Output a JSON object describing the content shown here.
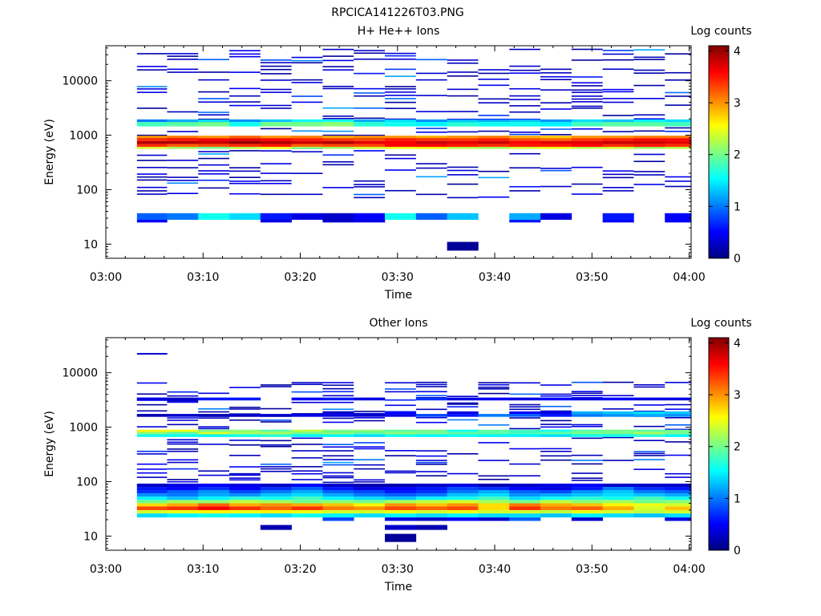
{
  "page": {
    "title": "RPCICA141226T03.PNG"
  },
  "colors": {
    "colormap": [
      "#00007f",
      "#0000ff",
      "#007fff",
      "#00ffff",
      "#7fff7f",
      "#ffff00",
      "#ff7f00",
      "#ff0000",
      "#7f0000"
    ],
    "axis": "#000000",
    "background": "#ffffff"
  },
  "chart_data": [
    {
      "type": "heatmap",
      "title": "H+ He++ Ions",
      "xlabel": "Time",
      "ylabel": "Energy (eV)",
      "xtick_labels": [
        "03:00",
        "03:10",
        "03:20",
        "03:30",
        "03:40",
        "03:50",
        "04:00"
      ],
      "xlim_minutes": [
        0,
        60.2
      ],
      "ytick_labels": [
        "10",
        "100",
        "1000",
        "10000"
      ],
      "ytick_values": [
        10,
        100,
        1000,
        10000
      ],
      "ylim": [
        5.5,
        44000
      ],
      "yscale": "log",
      "colorbar": {
        "label": "Log counts",
        "range": [
          0,
          4.1
        ],
        "tick_labels": [
          "0",
          "1",
          "2",
          "3",
          "4"
        ],
        "tick_values": [
          0,
          1,
          2,
          3,
          4
        ]
      },
      "time_bins_minutes": [
        [
          3.2,
          6.3
        ],
        [
          6.3,
          9.5
        ],
        [
          9.5,
          12.7
        ],
        [
          12.7,
          15.9
        ],
        [
          15.9,
          19.1
        ],
        [
          19.1,
          22.3
        ],
        [
          22.3,
          25.5
        ],
        [
          25.5,
          28.7
        ],
        [
          28.7,
          31.9
        ],
        [
          31.9,
          35.1
        ],
        [
          35.1,
          38.3
        ],
        [
          38.3,
          41.5
        ],
        [
          41.5,
          44.7
        ],
        [
          44.7,
          47.9
        ],
        [
          47.9,
          51.1
        ],
        [
          51.1,
          54.3
        ],
        [
          54.3,
          57.5
        ],
        [
          57.5,
          60.2
        ]
      ],
      "bands": [
        {
          "e": [
            1450,
            1750
          ],
          "v": [
            1.8,
            1.9,
            2.0,
            1.6,
            2.0,
            2.0,
            2.1,
            1.7,
            1.6,
            1.5,
            1.7,
            1.6,
            1.6,
            1.5,
            1.8,
            1.9,
            1.9,
            1.8
          ]
        },
        {
          "e": [
            1750,
            1950
          ],
          "v": [
            1.0,
            1.2,
            1.4,
            1.1,
            1.3,
            1.5,
            1.6,
            1.2,
            1.4,
            1.1,
            1.3,
            1.2,
            1.3,
            1.1,
            1.4,
            1.3,
            1.5,
            1.4
          ]
        },
        {
          "e": [
            880,
            980
          ],
          "v": [
            3.0,
            3.1,
            3.0,
            3.2,
            3.0,
            3.1,
            2.9,
            3.0,
            3.0,
            2.9,
            3.0,
            3.1,
            2.9,
            2.8,
            3.0,
            3.0,
            3.1,
            3.1
          ]
        },
        {
          "e": [
            780,
            880
          ],
          "v": [
            3.4,
            3.5,
            3.6,
            3.7,
            3.6,
            3.5,
            3.4,
            3.3,
            3.5,
            3.4,
            3.4,
            3.5,
            3.3,
            3.2,
            3.4,
            3.5,
            3.6,
            3.6
          ]
        },
        {
          "e": [
            690,
            780
          ],
          "v": [
            3.9,
            3.9,
            3.8,
            4.0,
            3.9,
            3.8,
            3.9,
            3.7,
            3.6,
            3.8,
            3.7,
            3.8,
            3.6,
            3.7,
            3.7,
            3.8,
            3.8,
            3.7
          ]
        },
        {
          "e": [
            610,
            690
          ],
          "v": [
            3.4,
            3.2,
            3.3,
            3.4,
            3.5,
            3.2,
            3.3,
            3.3,
            3.6,
            3.6,
            3.5,
            3.4,
            3.5,
            3.5,
            3.6,
            3.4,
            3.5,
            3.4
          ]
        },
        {
          "e": [
            560,
            610
          ],
          "v": [
            2.4,
            2.2,
            2.0,
            2.3,
            2.5,
            2.1,
            2.2,
            2.4,
            2.5,
            2.6,
            2.3,
            2.2,
            2.4,
            2.5,
            2.3,
            2.4,
            2.2,
            2.3
          ]
        },
        {
          "e": [
            28,
            37
          ],
          "v": [
            0.9,
            1.0,
            1.6,
            1.4,
            0.6,
            0.4,
            0.3,
            0.5,
            1.6,
            0.9,
            1.3,
            0,
            1.2,
            0.4,
            0,
            0.6,
            0,
            0.5
          ]
        },
        {
          "e": [
            25,
            28
          ],
          "v": [
            0.5,
            0,
            0,
            0,
            0.4,
            0,
            0.3,
            0.4,
            0,
            0,
            0,
            0,
            0.6,
            0,
            0,
            0.5,
            0,
            0.5
          ]
        },
        {
          "e": [
            9.0,
            11.0
          ],
          "v": [
            0,
            0,
            0,
            0,
            0,
            0,
            0,
            0,
            0,
            0,
            0.1,
            0,
            0,
            0,
            0,
            0,
            0,
            0
          ]
        },
        {
          "e": [
            7.6,
            9.0
          ],
          "v": [
            0,
            0,
            0,
            0,
            0,
            0,
            0,
            0,
            0,
            0,
            0.1,
            0,
            0,
            0,
            0,
            0,
            0,
            0
          ]
        }
      ],
      "scatter_energy_range": [
        70,
        40000
      ],
      "scatter_density": 0.35
    },
    {
      "type": "heatmap",
      "title": "Other Ions",
      "xlabel": "Time",
      "ylabel": "Energy (eV)",
      "xtick_labels": [
        "03:00",
        "03:10",
        "03:20",
        "03:30",
        "03:40",
        "03:50",
        "04:00"
      ],
      "xlim_minutes": [
        0,
        60.2
      ],
      "ytick_labels": [
        "10",
        "100",
        "1000",
        "10000"
      ],
      "ytick_values": [
        10,
        100,
        1000,
        10000
      ],
      "ylim": [
        5.5,
        44000
      ],
      "yscale": "log",
      "colorbar": {
        "label": "Log counts",
        "range": [
          0,
          4.1
        ],
        "tick_labels": [
          "0",
          "1",
          "2",
          "3",
          "4"
        ],
        "tick_values": [
          0,
          1,
          2,
          3,
          4
        ]
      },
      "time_bins_minutes": [
        [
          3.2,
          6.3
        ],
        [
          6.3,
          9.5
        ],
        [
          9.5,
          12.7
        ],
        [
          12.7,
          15.9
        ],
        [
          15.9,
          19.1
        ],
        [
          19.1,
          22.3
        ],
        [
          22.3,
          25.5
        ],
        [
          25.5,
          28.7
        ],
        [
          28.7,
          31.9
        ],
        [
          31.9,
          35.1
        ],
        [
          35.1,
          38.3
        ],
        [
          38.3,
          41.5
        ],
        [
          41.5,
          44.7
        ],
        [
          44.7,
          47.9
        ],
        [
          47.9,
          51.1
        ],
        [
          51.1,
          54.3
        ],
        [
          54.3,
          57.5
        ],
        [
          57.5,
          60.2
        ]
      ],
      "bands": [
        {
          "e": [
            3100,
            3500
          ],
          "v": [
            0.4,
            0.3,
            0.6,
            0.6,
            0,
            0.5,
            0.6,
            0.4,
            0,
            0.7,
            0.4,
            0.5,
            0.4,
            0.5,
            0.4,
            0.5,
            0.4,
            0.4
          ]
        },
        {
          "e": [
            1550,
            1750
          ],
          "v": [
            0.2,
            0.3,
            0.2,
            0.3,
            0.3,
            0.4,
            0.4,
            0.3,
            0.4,
            0.8,
            0.6,
            1.0,
            0.9,
            0.6,
            1.0,
            1.1,
            1.2,
            1.1
          ]
        },
        {
          "e": [
            1750,
            1950
          ],
          "v": [
            0,
            0,
            0,
            0,
            0,
            0,
            0.3,
            0,
            0.5,
            0,
            0.4,
            0,
            0.5,
            0.4,
            1.2,
            1.3,
            1.4,
            1.3
          ]
        },
        {
          "e": [
            820,
            900
          ],
          "v": [
            2.6,
            2.5,
            2.0,
            2.1,
            1.9,
            2.3,
            2.0,
            2.1,
            1.9,
            2.0,
            1.6,
            1.9,
            1.8,
            1.6,
            1.9,
            2.0,
            1.9,
            2.0
          ]
        },
        {
          "e": [
            740,
            820
          ],
          "v": [
            2.1,
            1.9,
            2.4,
            2.2,
            2.2,
            2.0,
            2.1,
            1.9,
            2.1,
            2.0,
            1.9,
            1.9,
            1.8,
            1.9,
            2.0,
            2.0,
            2.2,
            2.0
          ]
        },
        {
          "e": [
            660,
            740
          ],
          "v": [
            1.6,
            1.6,
            1.5,
            1.6,
            1.7,
            1.5,
            1.5,
            1.4,
            1.6,
            1.5,
            1.6,
            1.5,
            1.5,
            1.4,
            1.6,
            1.6,
            1.7,
            1.5
          ]
        },
        {
          "e": [
            80,
            92
          ],
          "v": [
            0.3,
            0.4,
            0.5,
            0.4,
            0.3,
            0.5,
            0.3,
            0.2,
            0.2,
            0.3,
            0.4,
            0.2,
            0.3,
            0.4,
            0.5,
            0.3,
            0.3,
            0.3
          ]
        },
        {
          "e": [
            70,
            80
          ],
          "v": [
            0.6,
            0.5,
            0.7,
            0.5,
            0.7,
            0.9,
            0.6,
            0.4,
            0.5,
            0.6,
            0.8,
            0.7,
            0.5,
            0.4,
            0.6,
            1.0,
            0.7,
            0.6
          ]
        },
        {
          "e": [
            61,
            70
          ],
          "v": [
            0.7,
            0.9,
            1.1,
            0.8,
            1.0,
            1.2,
            0.9,
            0.8,
            0.6,
            0.7,
            1.0,
            1.2,
            0.9,
            0.8,
            1.1,
            1.3,
            1.0,
            0.9
          ]
        },
        {
          "e": [
            53,
            61
          ],
          "v": [
            1.1,
            1.0,
            1.2,
            1.1,
            1.3,
            1.4,
            1.2,
            1.0,
            0.9,
            1.0,
            1.3,
            1.4,
            1.1,
            1.2,
            1.3,
            1.4,
            1.3,
            1.2
          ]
        },
        {
          "e": [
            46,
            53
          ],
          "v": [
            1.5,
            1.3,
            1.5,
            1.7,
            1.6,
            1.8,
            1.5,
            1.4,
            1.3,
            1.5,
            1.6,
            1.8,
            1.4,
            1.6,
            1.7,
            1.6,
            1.8,
            1.6
          ]
        },
        {
          "e": [
            40,
            46
          ],
          "v": [
            2.0,
            2.2,
            2.1,
            2.3,
            2.2,
            2.0,
            2.1,
            2.0,
            2.2,
            2.3,
            2.4,
            2.2,
            2.0,
            2.3,
            2.1,
            2.2,
            2.0,
            2.1
          ]
        },
        {
          "e": [
            35,
            40
          ],
          "v": [
            2.7,
            2.9,
            3.2,
            2.9,
            3.0,
            2.9,
            2.8,
            2.6,
            3.0,
            2.8,
            3.0,
            2.7,
            3.1,
            2.9,
            2.8,
            2.6,
            2.5,
            2.4
          ]
        },
        {
          "e": [
            30,
            35
          ],
          "v": [
            3.3,
            3.4,
            3.6,
            3.4,
            3.2,
            3.4,
            3.1,
            3.0,
            3.3,
            3.2,
            3.3,
            2.7,
            3.4,
            3.1,
            3.2,
            2.9,
            2.4,
            2.8
          ]
        },
        {
          "e": [
            26,
            30
          ],
          "v": [
            2.4,
            2.5,
            2.6,
            2.5,
            2.6,
            2.5,
            2.4,
            2.4,
            2.5,
            2.4,
            2.5,
            2.4,
            2.4,
            2.3,
            2.5,
            2.4,
            2.3,
            2.4
          ]
        },
        {
          "e": [
            22,
            26
          ],
          "v": [
            1.4,
            1.5,
            1.6,
            1.5,
            1.4,
            1.6,
            1.5,
            1.4,
            1.5,
            1.4,
            1.5,
            1.4,
            1.4,
            1.3,
            1.5,
            1.4,
            1.3,
            1.4
          ]
        },
        {
          "e": [
            19,
            22
          ],
          "v": [
            0,
            0,
            0,
            0,
            0,
            0,
            0.8,
            0,
            0.4,
            0.3,
            0.5,
            0.3,
            0.9,
            0,
            0.3,
            0,
            0,
            0.4
          ]
        },
        {
          "e": [
            13,
            16
          ],
          "v": [
            0,
            0,
            0,
            0,
            0.2,
            0,
            0,
            0,
            0.3,
            0.2,
            0,
            0,
            0,
            0,
            0,
            0,
            0,
            0
          ]
        },
        {
          "e": [
            9.0,
            11.0
          ],
          "v": [
            0,
            0,
            0,
            0,
            0,
            0,
            0,
            0,
            0.1,
            0,
            0,
            0,
            0,
            0,
            0,
            0,
            0,
            0
          ]
        },
        {
          "e": [
            7.8,
            9.0
          ],
          "v": [
            0,
            0,
            0,
            0,
            0,
            0,
            0,
            0,
            0.1,
            0,
            0,
            0,
            0,
            0,
            0,
            0,
            0,
            0
          ]
        },
        {
          "e": [
            21500,
            23000
          ],
          "v": [
            0.3,
            0,
            0,
            0,
            0,
            0,
            0,
            0,
            0,
            0,
            0,
            0,
            0,
            0,
            0,
            0,
            0,
            0
          ]
        }
      ],
      "scatter_energy_range": [
        95,
        7000
      ],
      "scatter_density": 0.28
    }
  ]
}
